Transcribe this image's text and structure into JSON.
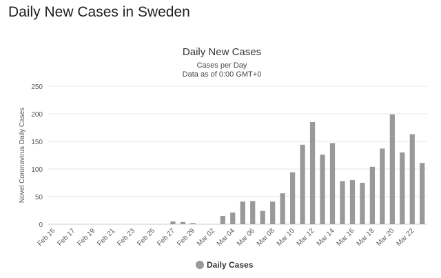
{
  "page": {
    "title": "Daily New Cases in Sweden"
  },
  "chart_data": {
    "type": "bar",
    "title": "Daily New Cases",
    "subtitle": "Cases per Day",
    "subtitle2": "Data as of 0:00 GMT+0",
    "xlabel": "",
    "ylabel": "Novel Coronavirus Daily Cases",
    "ylim": [
      0,
      250
    ],
    "yticks": [
      0,
      50,
      100,
      150,
      200,
      250
    ],
    "categories": [
      "Feb 15",
      "Feb 16",
      "Feb 17",
      "Feb 18",
      "Feb 19",
      "Feb 20",
      "Feb 21",
      "Feb 22",
      "Feb 23",
      "Feb 24",
      "Feb 25",
      "Feb 26",
      "Feb 27",
      "Feb 28",
      "Feb 29",
      "Mar 01",
      "Mar 02",
      "Mar 03",
      "Mar 04",
      "Mar 05",
      "Mar 06",
      "Mar 07",
      "Mar 08",
      "Mar 09",
      "Mar 10",
      "Mar 11",
      "Mar 12",
      "Mar 13",
      "Mar 14",
      "Mar 15",
      "Mar 16",
      "Mar 17",
      "Mar 18",
      "Mar 19",
      "Mar 20",
      "Mar 21",
      "Mar 22",
      "Mar 23"
    ],
    "xtick_labels": [
      "Feb 15",
      "Feb 17",
      "Feb 19",
      "Feb 21",
      "Feb 23",
      "Feb 25",
      "Feb 27",
      "Feb 29",
      "Mar 02",
      "Mar 04",
      "Mar 06",
      "Mar 08",
      "Mar 10",
      "Mar 12",
      "Mar 14",
      "Mar 16",
      "Mar 18",
      "Mar 20",
      "Mar 22"
    ],
    "series": [
      {
        "name": "Daily Cases",
        "color": "#999999",
        "values": [
          0,
          0,
          0,
          0,
          0,
          0,
          0,
          0,
          0,
          0,
          0,
          0,
          5,
          4,
          2,
          0,
          0,
          15,
          21,
          41,
          42,
          24,
          41,
          56,
          94,
          144,
          185,
          126,
          147,
          78,
          80,
          75,
          104,
          137,
          199,
          130,
          163,
          111
        ]
      }
    ],
    "grid": true,
    "legend": "bottom-center"
  }
}
